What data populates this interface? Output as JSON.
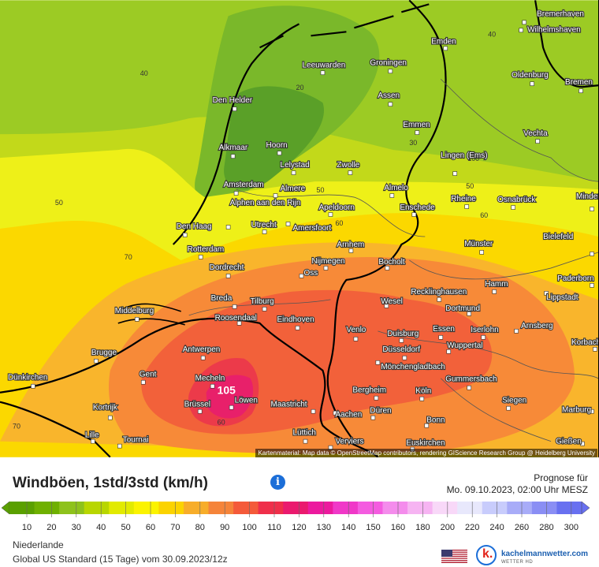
{
  "map": {
    "attribution": "Kartenmaterial: Map data © OpenStreetMap contributors, rendering GIScience Research Group @ Heidelberg University",
    "peak_label": "105",
    "contour_labels": [
      "40",
      "40",
      "20",
      "30",
      "50",
      "50",
      "60",
      "70",
      "50",
      "60",
      "70",
      "60",
      "100"
    ],
    "cities": [
      "Bremerhaven",
      "Wilhelmshaven",
      "Emden",
      "Oldenburg",
      "Bremen",
      "Leeuwarden",
      "Groningen",
      "Den Helder",
      "Assen",
      "Emmen",
      "Vechta",
      "Alkmaar",
      "Hoorn",
      "Lelystad",
      "Zwolle",
      "Lingen (Ems)",
      "Amsterdam",
      "Almere",
      "Almelo",
      "Alphen aan den Rijn",
      "Apeldoorn",
      "Enschede",
      "Rheine",
      "Osnabrück",
      "Minden",
      "Den Haag",
      "Utrecht",
      "Amersfoort",
      "Bielefeld",
      "Rotterdam",
      "Arnhem",
      "Münster",
      "Nijmegen",
      "Bocholt",
      "Dordrecht",
      "Oss",
      "Recklinghausen",
      "Hamm",
      "Paderborn",
      "Breda",
      "Tilburg",
      "Wesel",
      "Lippstadt",
      "Middelburg",
      "Dortmund",
      "Roosendaal",
      "Eindhoven",
      "Venlo",
      "Essen",
      "Iserlohn",
      "Arnsberg",
      "Brugge",
      "Antwerpen",
      "Duisburg",
      "Düsseldorf",
      "Wuppertal",
      "Korbach",
      "Mönchengladbach",
      "Dünkirchen",
      "Gent",
      "Mecheln",
      "Bergheim",
      "Gummersbach",
      "Köln",
      "Siegen",
      "Brüssel",
      "Löwen",
      "Maastricht",
      "Aachen",
      "Düren",
      "Marburg",
      "Kortrijk",
      "Bonn",
      "Lille",
      "Tournai",
      "Lüttich",
      "Verviers",
      "Euskirchen",
      "Gießen"
    ]
  },
  "header": {
    "title": "Windböen, 1std/3std (km/h)",
    "info_icon": "i",
    "forecast_label": "Prognose für",
    "forecast_time": "Mo. 09.10.2023, 02:00 Uhr MESZ"
  },
  "legend": {
    "ticks": [
      "10",
      "20",
      "30",
      "40",
      "50",
      "60",
      "70",
      "80",
      "90",
      "100",
      "110",
      "120",
      "130",
      "140",
      "150",
      "160",
      "180",
      "200",
      "220",
      "240",
      "260",
      "280",
      "300"
    ],
    "colors": [
      "#5aa000",
      "#6fb000",
      "#8ec21c",
      "#b8d600",
      "#e2ea00",
      "#fbf300",
      "#fbd300",
      "#f7ad2a",
      "#f5843a",
      "#f45a3a",
      "#ef2f4a",
      "#ea1a6e",
      "#ec1a9e",
      "#f038c8",
      "#f45ce0",
      "#f48cec",
      "#f6b4f2",
      "#f8d8f8",
      "#e8e8fc",
      "#c8ccfc",
      "#a8acf8",
      "#8a8ef4",
      "#6870f0"
    ]
  },
  "footer": {
    "region": "Niederlande",
    "model": "Global US Standard (15 Tage) vom 30.09.2023/12z",
    "brand": "kachelmannwetter.com",
    "brand_sub": "WETTER HD"
  }
}
